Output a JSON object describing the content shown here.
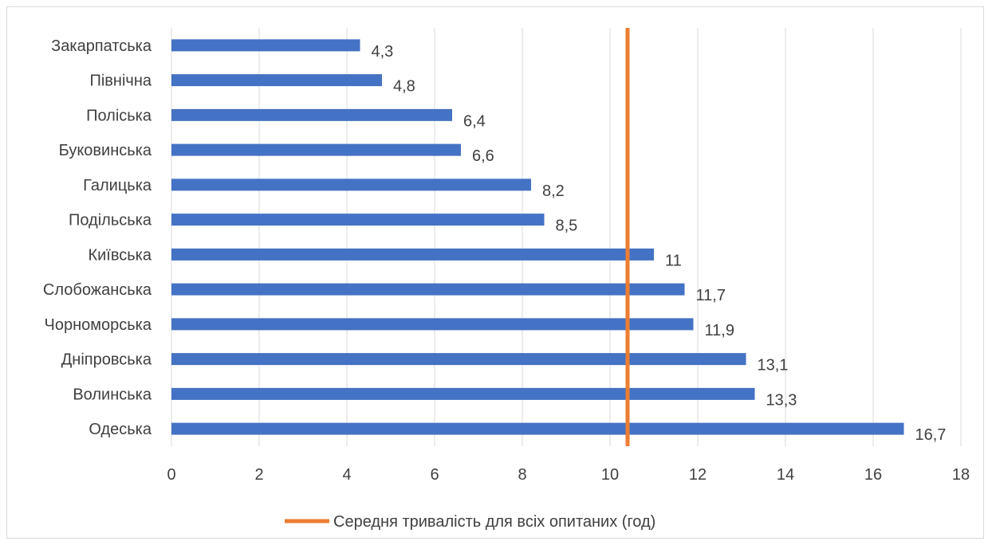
{
  "chart_data": {
    "type": "bar",
    "orientation": "horizontal",
    "categories": [
      "Закарпатська",
      "Північна",
      "Поліська",
      "Буковинська",
      "Галицька",
      "Подільська",
      "Київська",
      "Слобожанська",
      "Чорноморська",
      "Дніпровська",
      "Волинська",
      "Одеська"
    ],
    "values": [
      4.3,
      4.8,
      6.4,
      6.6,
      8.2,
      8.5,
      11,
      11.7,
      11.9,
      13.1,
      13.3,
      16.7
    ],
    "value_labels": [
      "4,3",
      "4,8",
      "6,4",
      "6,6",
      "8,2",
      "8,5",
      "11",
      "11,7",
      "11,9",
      "13,1",
      "13,3",
      "16,7"
    ],
    "bar_color": "#4472C4",
    "xlim": [
      0,
      18
    ],
    "xticks": [
      0,
      2,
      4,
      6,
      8,
      10,
      12,
      14,
      16,
      18
    ],
    "grid": "vertical",
    "reference_line": {
      "name": "Середня тривалість для всіх опитаних (год)",
      "value": 10.4,
      "color": "#ED7D31"
    },
    "legend_placement": "bottom",
    "title": "",
    "xlabel": "",
    "ylabel": ""
  }
}
